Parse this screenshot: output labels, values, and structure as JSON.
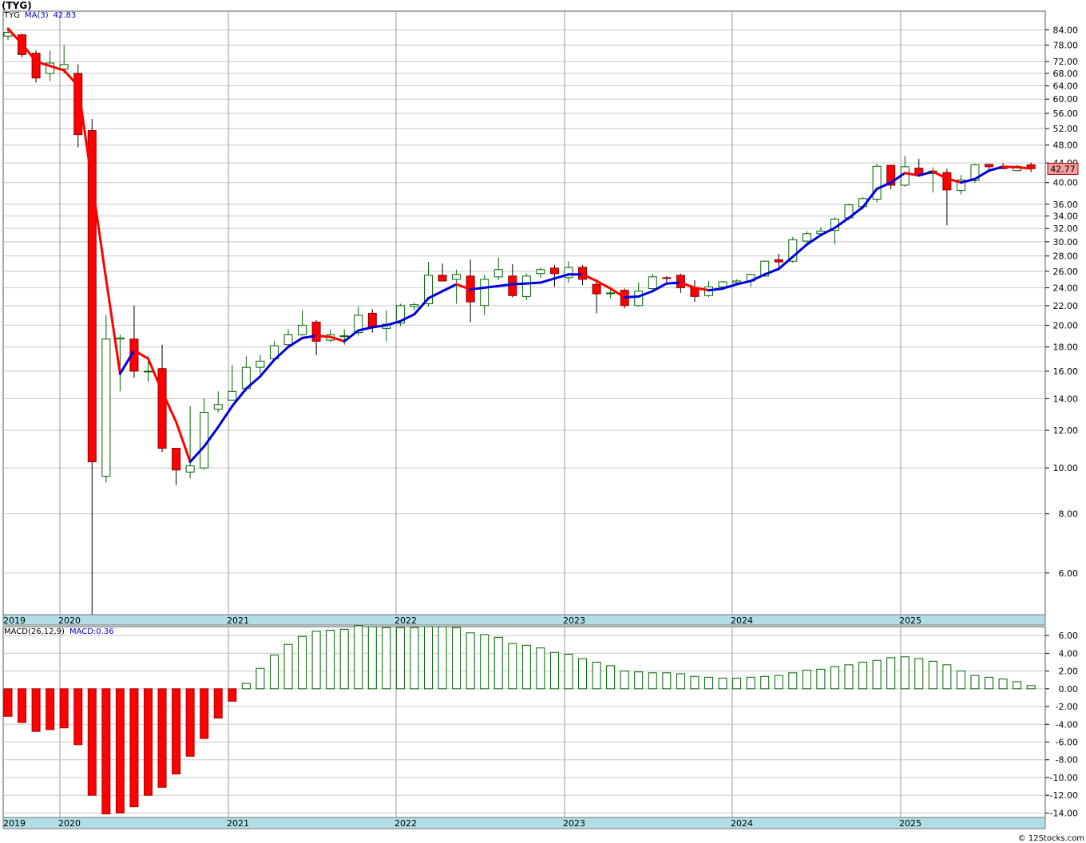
{
  "title": "(TYG)",
  "credit": "© 12Stocks.com",
  "legend_price": {
    "symbol": "TYG",
    "ma_label": "MA(3)",
    "ma_value": "42.83"
  },
  "legend_macd": {
    "label": "MACD(26,12,9)",
    "value_label": "MACD:0.36"
  },
  "last_price_label": "42.77",
  "colors": {
    "up": "#ffffff",
    "up_border": "#006400",
    "down": "#ff0000",
    "down_border": "#8b0000",
    "ma_up": "#0000dd",
    "ma_down": "#ff0000",
    "macd_pos_border": "#006400",
    "macd_neg": "#ff0000",
    "timeline_bar": "#b0dde6",
    "grid": "#c8c8c8"
  },
  "chart_data": [
    {
      "type": "candlestick",
      "scale": "log",
      "interval": "monthly",
      "y_ticks": [
        6,
        8,
        10,
        12,
        14,
        16,
        18,
        20,
        22,
        24,
        26,
        28,
        30,
        32,
        34,
        36,
        40,
        44,
        48,
        52,
        56,
        60,
        64,
        68,
        72,
        78,
        84
      ],
      "y_tick_labels": [
        "6.00",
        "8.00",
        "10.00",
        "12.00",
        "14.00",
        "16.00",
        "18.00",
        "20.00",
        "22.00",
        "24.00",
        "26.00",
        "28.00",
        "30.00",
        "32.00",
        "34.00",
        "36.00",
        "40.00",
        "44.00",
        "48.00",
        "52.00",
        "56.00",
        "60.00",
        "64.00",
        "68.00",
        "72.00",
        "78.00",
        "84.00"
      ],
      "ylim": [
        4.9,
        92
      ],
      "x_labels": [
        "2019",
        "2020",
        "2021",
        "2022",
        "2023",
        "2024",
        "2025"
      ],
      "start_month": "2019-12",
      "ohlc": [
        [
          81.5,
          84.5,
          80.0,
          83.0
        ],
        [
          82.0,
          82.5,
          73.5,
          74.5
        ],
        [
          75.0,
          76.0,
          65.0,
          66.5
        ],
        [
          68.0,
          76.0,
          65.5,
          71.5
        ],
        [
          69.5,
          78.0,
          68.0,
          71.0
        ],
        [
          68.0,
          71.0,
          47.5,
          50.5
        ],
        [
          51.5,
          54.5,
          4.9,
          10.3
        ],
        [
          9.6,
          21.0,
          9.3,
          18.7
        ],
        [
          18.7,
          19.1,
          14.5,
          18.8
        ],
        [
          18.7,
          22.0,
          15.5,
          16.0
        ],
        [
          16.0,
          17.2,
          15.2,
          16.0
        ],
        [
          16.2,
          18.2,
          10.8,
          11.0
        ],
        [
          11.0,
          11.0,
          9.2,
          9.9
        ],
        [
          9.8,
          13.5,
          9.5,
          10.1
        ],
        [
          10.0,
          14.0,
          9.9,
          13.1
        ],
        [
          13.3,
          14.5,
          13.1,
          13.6
        ],
        [
          13.9,
          16.5,
          13.9,
          14.5
        ],
        [
          14.7,
          17.2,
          14.5,
          16.3
        ],
        [
          16.3,
          17.3,
          15.8,
          16.8
        ],
        [
          17.0,
          18.5,
          16.8,
          18.1
        ],
        [
          18.2,
          19.6,
          17.9,
          19.1
        ],
        [
          19.1,
          21.5,
          19.0,
          20.0
        ],
        [
          20.3,
          20.5,
          17.3,
          18.5
        ],
        [
          18.6,
          19.6,
          18.4,
          19.1
        ],
        [
          19.0,
          19.6,
          18.2,
          19.0
        ],
        [
          19.3,
          21.9,
          19.0,
          21.0
        ],
        [
          21.2,
          21.6,
          19.3,
          19.8
        ],
        [
          19.7,
          21.5,
          18.5,
          20.1
        ],
        [
          20.2,
          22.2,
          19.9,
          22.0
        ],
        [
          21.9,
          22.3,
          21.5,
          22.1
        ],
        [
          22.2,
          27.2,
          21.9,
          25.5
        ],
        [
          25.5,
          27.0,
          24.8,
          24.8
        ],
        [
          25.0,
          26.2,
          22.2,
          25.6
        ],
        [
          25.4,
          27.5,
          20.3,
          22.4
        ],
        [
          22.0,
          25.5,
          21.0,
          25.0
        ],
        [
          25.3,
          27.8,
          24.9,
          26.2
        ],
        [
          25.4,
          26.9,
          22.9,
          23.1
        ],
        [
          23.0,
          25.7,
          22.6,
          25.4
        ],
        [
          25.7,
          26.5,
          25.2,
          26.2
        ],
        [
          26.4,
          26.8,
          24.1,
          25.7
        ],
        [
          25.2,
          27.3,
          24.6,
          26.5
        ],
        [
          26.5,
          26.8,
          24.3,
          25.0
        ],
        [
          24.4,
          25.0,
          21.2,
          23.3
        ],
        [
          23.4,
          24.0,
          22.8,
          23.4
        ],
        [
          23.7,
          23.9,
          21.7,
          22.0
        ],
        [
          22.0,
          24.6,
          21.9,
          23.6
        ],
        [
          23.9,
          25.7,
          23.6,
          25.3
        ],
        [
          25.2,
          25.4,
          24.7,
          25.1
        ],
        [
          25.5,
          25.7,
          23.4,
          24.0
        ],
        [
          24.0,
          24.9,
          22.4,
          23.0
        ],
        [
          23.1,
          24.8,
          22.9,
          24.1
        ],
        [
          24.1,
          24.8,
          23.7,
          24.7
        ],
        [
          24.6,
          25.0,
          24.3,
          24.8
        ],
        [
          24.8,
          25.7,
          24.1,
          25.6
        ],
        [
          25.4,
          27.4,
          25.3,
          27.3
        ],
        [
          27.5,
          28.3,
          26.3,
          27.2
        ],
        [
          27.3,
          30.7,
          27.1,
          30.3
        ],
        [
          30.1,
          31.6,
          29.5,
          31.2
        ],
        [
          31.2,
          32.2,
          30.8,
          31.6
        ],
        [
          31.7,
          33.8,
          29.6,
          33.5
        ],
        [
          33.7,
          36.1,
          33.3,
          35.9
        ],
        [
          35.6,
          37.3,
          35.1,
          37.0
        ],
        [
          36.9,
          43.8,
          36.3,
          43.3
        ],
        [
          43.5,
          43.5,
          38.7,
          39.5
        ],
        [
          39.5,
          45.5,
          39.2,
          43.2
        ],
        [
          42.9,
          44.9,
          41.4,
          41.5
        ],
        [
          41.8,
          43.1,
          38.1,
          42.3
        ],
        [
          42.0,
          42.8,
          32.5,
          38.6
        ],
        [
          38.5,
          41.5,
          37.8,
          40.5
        ],
        [
          40.4,
          43.8,
          40.0,
          43.6
        ],
        [
          43.7,
          43.8,
          42.7,
          43.2
        ],
        [
          43.2,
          44.0,
          42.7,
          42.8
        ],
        [
          42.4,
          43.6,
          42.3,
          43.3
        ],
        [
          43.6,
          44.1,
          42.1,
          42.8
        ]
      ],
      "ma3": [
        84.5,
        78.5,
        72.0,
        70.5,
        69.0,
        64.0,
        40.0,
        25.0,
        15.8,
        17.7,
        17.0,
        14.5,
        12.5,
        10.3,
        11.1,
        12.2,
        13.5,
        14.7,
        15.6,
        16.9,
        18.0,
        18.8,
        19.0,
        18.9,
        18.5,
        19.5,
        19.8,
        20.0,
        20.4,
        21.1,
        22.8,
        23.6,
        24.4,
        23.8,
        24.0,
        24.2,
        24.4,
        24.5,
        24.6,
        25.1,
        25.6,
        25.6,
        24.8,
        23.9,
        22.9,
        23.0,
        23.6,
        24.5,
        24.6,
        24.0,
        23.7,
        23.9,
        24.4,
        24.8,
        25.6,
        26.3,
        27.9,
        29.6,
        31.0,
        32.1,
        33.7,
        35.5,
        38.8,
        40.0,
        41.9,
        41.4,
        42.2,
        40.8,
        40.0,
        40.7,
        42.4,
        43.2,
        43.1,
        42.83
      ],
      "series": [
        {
          "name": "MA(3)",
          "values_key": "ma3"
        }
      ]
    },
    {
      "type": "bar",
      "name": "MACD(26,12,9)",
      "y_ticks": [
        -14,
        -12,
        -10,
        -8,
        -6,
        -4,
        -2,
        0,
        2,
        4,
        6
      ],
      "y_tick_labels": [
        "-14.00",
        "-12.00",
        "-10.00",
        "-8.00",
        "-6.00",
        "-4.00",
        "-2.00",
        "0.00",
        "2.00",
        "4.00",
        "6.00"
      ],
      "ylim": [
        -14.5,
        7.0
      ],
      "values": [
        -3.1,
        -3.8,
        -4.8,
        -4.6,
        -4.4,
        -6.3,
        -12.0,
        -14.1,
        -14.0,
        -13.3,
        -12.0,
        -11.1,
        -9.6,
        -7.6,
        -5.6,
        -3.3,
        -1.4,
        0.6,
        2.3,
        3.8,
        5.0,
        5.9,
        6.5,
        6.6,
        6.7,
        7.1,
        7.0,
        6.9,
        6.9,
        6.9,
        7.0,
        7.0,
        6.9,
        6.3,
        6.1,
        5.8,
        5.1,
        4.9,
        4.6,
        4.1,
        3.9,
        3.4,
        3.0,
        2.6,
        2.0,
        1.9,
        1.8,
        1.8,
        1.7,
        1.4,
        1.3,
        1.2,
        1.2,
        1.3,
        1.4,
        1.5,
        1.8,
        2.1,
        2.2,
        2.5,
        2.7,
        3.0,
        3.2,
        3.5,
        3.6,
        3.4,
        3.1,
        2.7,
        2.0,
        1.5,
        1.3,
        1.1,
        0.8,
        0.36
      ]
    }
  ]
}
